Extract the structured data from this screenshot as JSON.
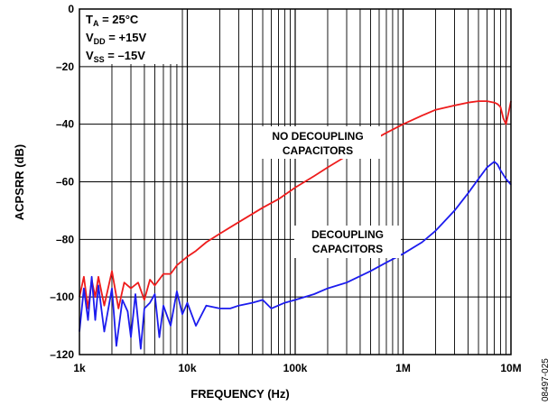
{
  "chart_data": {
    "type": "line",
    "x_scale": "log",
    "xlim": [
      1000,
      10000000
    ],
    "ylim": [
      -120,
      0
    ],
    "xlabel": "FREQUENCY (Hz)",
    "ylabel": "ACPSRR (dB)",
    "x_ticks": [
      1000,
      10000,
      100000,
      1000000,
      10000000
    ],
    "x_tick_labels": [
      "1k",
      "10k",
      "100k",
      "1M",
      "10M"
    ],
    "y_ticks": [
      0,
      -20,
      -40,
      -60,
      -80,
      -100,
      -120
    ],
    "y_tick_labels": [
      "0",
      "–20",
      "–40",
      "–60",
      "–80",
      "–100",
      "–120"
    ],
    "grid": true,
    "conditions": {
      "ta_sym": "T",
      "ta_sub": "A",
      "ta_val": " = 25°C",
      "vdd_sym": "V",
      "vdd_sub": "DD",
      "vdd_val": " = +15V",
      "vss_sym": "V",
      "vss_sub": "SS",
      "vss_val": " = –15V"
    },
    "annotations": {
      "no_decoupling_line1": "NO DECOUPLING",
      "no_decoupling_line2": "CAPACITORS",
      "decoupling_line1": "DECOUPLING",
      "decoupling_line2": "CAPACITORS"
    },
    "figure_id": "08497-025",
    "colors": {
      "no_decoupling": "#ee1c1c",
      "decoupling": "#1c1cee",
      "grid": "#000000"
    },
    "series": [
      {
        "color": "#ee1c1c",
        "x": [
          1000,
          1100,
          1200,
          1300,
          1400,
          1500,
          1700,
          2000,
          2300,
          2600,
          3000,
          3500,
          4000,
          4500,
          5000,
          6000,
          7000,
          8000,
          10000,
          12000,
          15000,
          20000,
          30000,
          50000,
          70000,
          100000,
          150000,
          200000,
          300000,
          500000,
          700000,
          1000000,
          1500000,
          2000000,
          3000000,
          4000000,
          5000000,
          6000000,
          7000000,
          7500000,
          8000000,
          8500000,
          9000000,
          9500000,
          10000000
        ],
        "y": [
          -100,
          -93,
          -104,
          -94,
          -100,
          -93,
          -103,
          -91,
          -104,
          -95,
          -97,
          -95,
          -101,
          -94,
          -96,
          -92,
          -92,
          -89,
          -86,
          -84,
          -81,
          -78,
          -74,
          -69,
          -66,
          -62,
          -58,
          -55,
          -51,
          -46,
          -43,
          -40,
          -37,
          -35,
          -33.5,
          -32.5,
          -32,
          -32,
          -32.5,
          -33,
          -34,
          -38,
          -40,
          -36,
          -32
        ]
      },
      {
        "color": "#1c1cee",
        "x": [
          1000,
          1100,
          1200,
          1300,
          1400,
          1500,
          1700,
          2000,
          2200,
          2500,
          2800,
          3000,
          3300,
          3700,
          4000,
          4500,
          5000,
          5500,
          6000,
          7000,
          8000,
          9000,
          10000,
          12000,
          15000,
          20000,
          25000,
          30000,
          40000,
          50000,
          60000,
          80000,
          100000,
          150000,
          200000,
          300000,
          500000,
          700000,
          1000000,
          1500000,
          2000000,
          3000000,
          4000000,
          5000000,
          6000000,
          7000000,
          7500000,
          8000000,
          9000000,
          10000000
        ],
        "y": [
          -112,
          -97,
          -108,
          -93,
          -108,
          -96,
          -112,
          -97,
          -117,
          -101,
          -105,
          -114,
          -99,
          -118,
          -104,
          -102,
          -99,
          -114,
          -103,
          -110,
          -98,
          -106,
          -102,
          -110,
          -103,
          -104,
          -104,
          -103,
          -102,
          -101,
          -104,
          -102,
          -101,
          -99,
          -97,
          -95,
          -91,
          -88,
          -85,
          -81,
          -77,
          -70,
          -64,
          -59,
          -55,
          -53,
          -54,
          -56,
          -59,
          -61
        ]
      }
    ]
  }
}
